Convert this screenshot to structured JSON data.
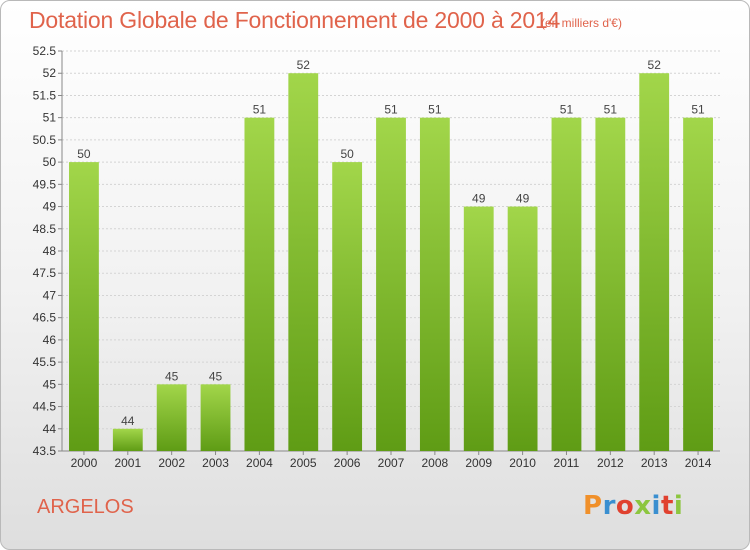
{
  "header": {
    "title": "Dotation Globale de Fonctionnement de 2000 à 2014",
    "subtitle": "(en milliers d'€)"
  },
  "footer": {
    "location": "ARGELOS",
    "brand": "Proxiti"
  },
  "colors": {
    "title": "#e0634b",
    "bar_top": "#a2d64a",
    "bar_bottom": "#5f9c15",
    "brand_letters": [
      "#f0902a",
      "#3a8fd0",
      "#e0412f",
      "#8cc63f",
      "#3a8fd0",
      "#e0412f",
      "#8cc63f"
    ]
  },
  "chart_data": {
    "type": "bar",
    "title": "Dotation Globale de Fonctionnement de 2000 à 2014",
    "subtitle": "(en milliers d'€)",
    "categories": [
      "2000",
      "2001",
      "2002",
      "2003",
      "2004",
      "2005",
      "2006",
      "2007",
      "2008",
      "2009",
      "2010",
      "2011",
      "2012",
      "2013",
      "2014"
    ],
    "values": [
      50,
      44,
      45,
      45,
      51,
      52,
      50,
      51,
      51,
      49,
      49,
      51,
      51,
      52,
      51
    ],
    "data_labels": [
      "50",
      "44",
      "45",
      "45",
      "51",
      "52",
      "50",
      "51",
      "51",
      "49",
      "49",
      "51",
      "51",
      "52",
      "51"
    ],
    "ylim": [
      43.5,
      52.5
    ],
    "yticks": [
      43.5,
      44,
      44.5,
      45,
      45.5,
      46,
      46.5,
      47,
      47.5,
      48,
      48.5,
      49,
      49.5,
      50,
      50.5,
      51,
      51.5,
      52,
      52.5
    ],
    "ytick_labels": [
      "43.5",
      "44",
      "44.5",
      "45",
      "45.5",
      "46",
      "46.5",
      "47",
      "47.5",
      "48",
      "48.5",
      "49",
      "49.5",
      "50",
      "50.5",
      "51",
      "51.5",
      "52",
      "52.5"
    ],
    "grid": true,
    "legend": "none"
  }
}
